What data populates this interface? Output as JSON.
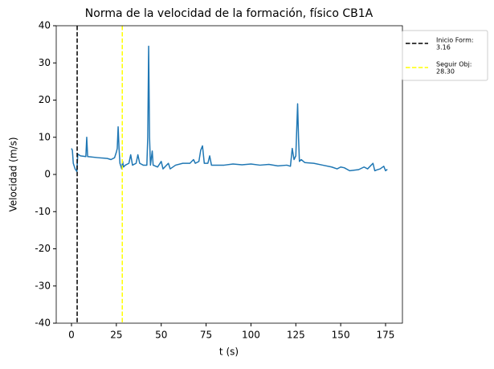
{
  "chart_data": {
    "type": "line",
    "title": "Norma de la velocidad de la formación, físico CB1A",
    "x_label": "t (s)",
    "y_label": "Velocidad (m/s)",
    "x": [
      0,
      0.5,
      1,
      2,
      3,
      3.5,
      5,
      8,
      8.5,
      9,
      15,
      20,
      22,
      24,
      25,
      25.5,
      26,
      26.5,
      27,
      28,
      28.5,
      29,
      30,
      32,
      33,
      34,
      36,
      37,
      38,
      40,
      42,
      42.5,
      43,
      43.5,
      44,
      45,
      45.5,
      48,
      50,
      51,
      54,
      55,
      58,
      62,
      66,
      68,
      69,
      71,
      72,
      73,
      74,
      76,
      77,
      78,
      85,
      90,
      95,
      100,
      105,
      110,
      115,
      120,
      122,
      123,
      124,
      125,
      125.5,
      126,
      126.5,
      127,
      128,
      130,
      135,
      140,
      145,
      148,
      150,
      152,
      155,
      160,
      163,
      165,
      167,
      168,
      169,
      170,
      172,
      174,
      175,
      176
    ],
    "series": [
      {
        "name": "Velocidad",
        "color": "#1f77b4",
        "values": [
          7,
          6.5,
          3,
          1.5,
          0.8,
          5.5,
          5,
          4.8,
          10,
          4.8,
          4.5,
          4.3,
          4,
          4.5,
          6,
          7,
          12.8,
          7,
          3,
          1.5,
          3.5,
          2,
          2.5,
          3,
          5.3,
          2.5,
          3,
          5.3,
          3,
          2.5,
          2.5,
          10,
          34.5,
          10,
          2.5,
          6.3,
          2.5,
          2,
          3.5,
          1.5,
          3,
          1.5,
          2.5,
          3,
          3,
          4,
          3,
          3.5,
          6.5,
          7.7,
          3,
          3,
          5,
          2.5,
          2.5,
          2.8,
          2.6,
          2.8,
          2.5,
          2.7,
          2.3,
          2.5,
          2.2,
          7,
          4,
          5,
          12,
          19,
          10,
          3.5,
          4,
          3.2,
          3,
          2.5,
          2,
          1.5,
          2,
          1.8,
          1,
          1.3,
          2,
          1.5,
          2.5,
          3,
          1,
          1.2,
          1.5,
          2.2,
          1,
          1.4
        ]
      }
    ],
    "vlines": [
      {
        "name": "Inicio Form:",
        "x": 3.16,
        "x_label": "3.16",
        "color": "#000000"
      },
      {
        "name": "Seguir Obj:",
        "x": 28.3,
        "x_label": "28.30",
        "color": "#ffff00"
      }
    ],
    "xlim": [
      -8.5,
      184.4
    ],
    "ylim": [
      -40,
      40
    ],
    "xticks": [
      0,
      25,
      50,
      75,
      100,
      125,
      150,
      175
    ],
    "yticks": [
      -40,
      -30,
      -20,
      -10,
      0,
      10,
      20,
      30,
      40
    ]
  }
}
